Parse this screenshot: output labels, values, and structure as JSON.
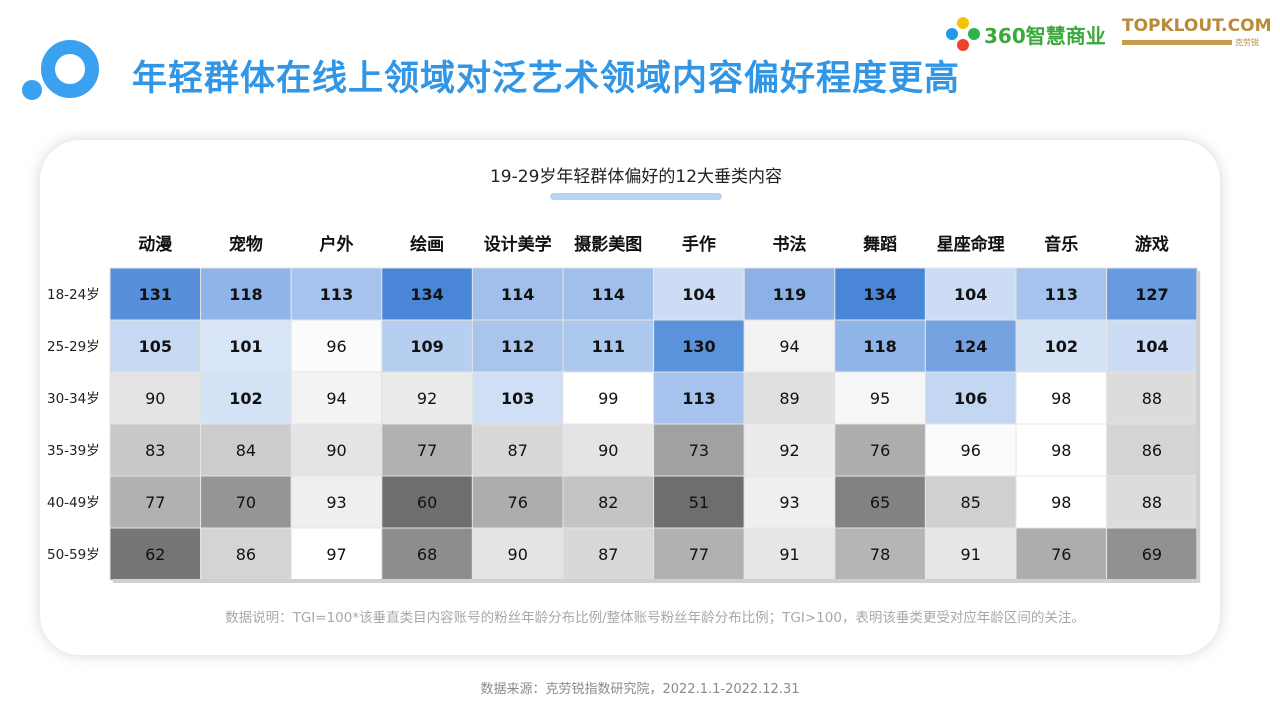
{
  "header": {
    "title": "年轻群体在线上领域对泛艺术领域内容偏好程度更高",
    "brand_360": "360智慧商业",
    "brand_topklout": "TOPKLOUT.COM",
    "brand_topklout_sub": "克劳锐"
  },
  "chart_data": {
    "type": "heatmap",
    "title": "19-29岁年轻群体偏好的12大垂类内容",
    "columns": [
      "动漫",
      "宠物",
      "户外",
      "绘画",
      "设计美学",
      "摄影美图",
      "手作",
      "书法",
      "舞蹈",
      "星座命理",
      "音乐",
      "游戏"
    ],
    "rows": [
      "18-24岁",
      "25-29岁",
      "30-34岁",
      "35-39岁",
      "40-49岁",
      "50-59岁"
    ],
    "values": [
      [
        131,
        118,
        113,
        134,
        114,
        114,
        104,
        119,
        134,
        104,
        113,
        127
      ],
      [
        105,
        101,
        96,
        109,
        112,
        111,
        130,
        94,
        118,
        124,
        102,
        104
      ],
      [
        90,
        102,
        94,
        92,
        103,
        99,
        113,
        89,
        95,
        106,
        98,
        88
      ],
      [
        83,
        84,
        90,
        77,
        87,
        90,
        73,
        92,
        76,
        96,
        98,
        86
      ],
      [
        77,
        70,
        93,
        60,
        76,
        82,
        51,
        93,
        65,
        85,
        98,
        88
      ],
      [
        62,
        86,
        97,
        68,
        90,
        87,
        77,
        91,
        78,
        91,
        76,
        69
      ]
    ],
    "bold_threshold": 100,
    "colors": {
      "high": "#4a86d8",
      "neutral": "#ffffff",
      "low": "#6e6e6e"
    }
  },
  "footnote": "数据说明：TGI=100*该垂直类目内容账号的粉丝年龄分布比例/整体账号粉丝年龄分布比例；TGI>100，表明该垂类更受对应年龄区间的关注。",
  "source": "数据来源：克劳锐指数研究院，2022.1.1-2022.12.31"
}
